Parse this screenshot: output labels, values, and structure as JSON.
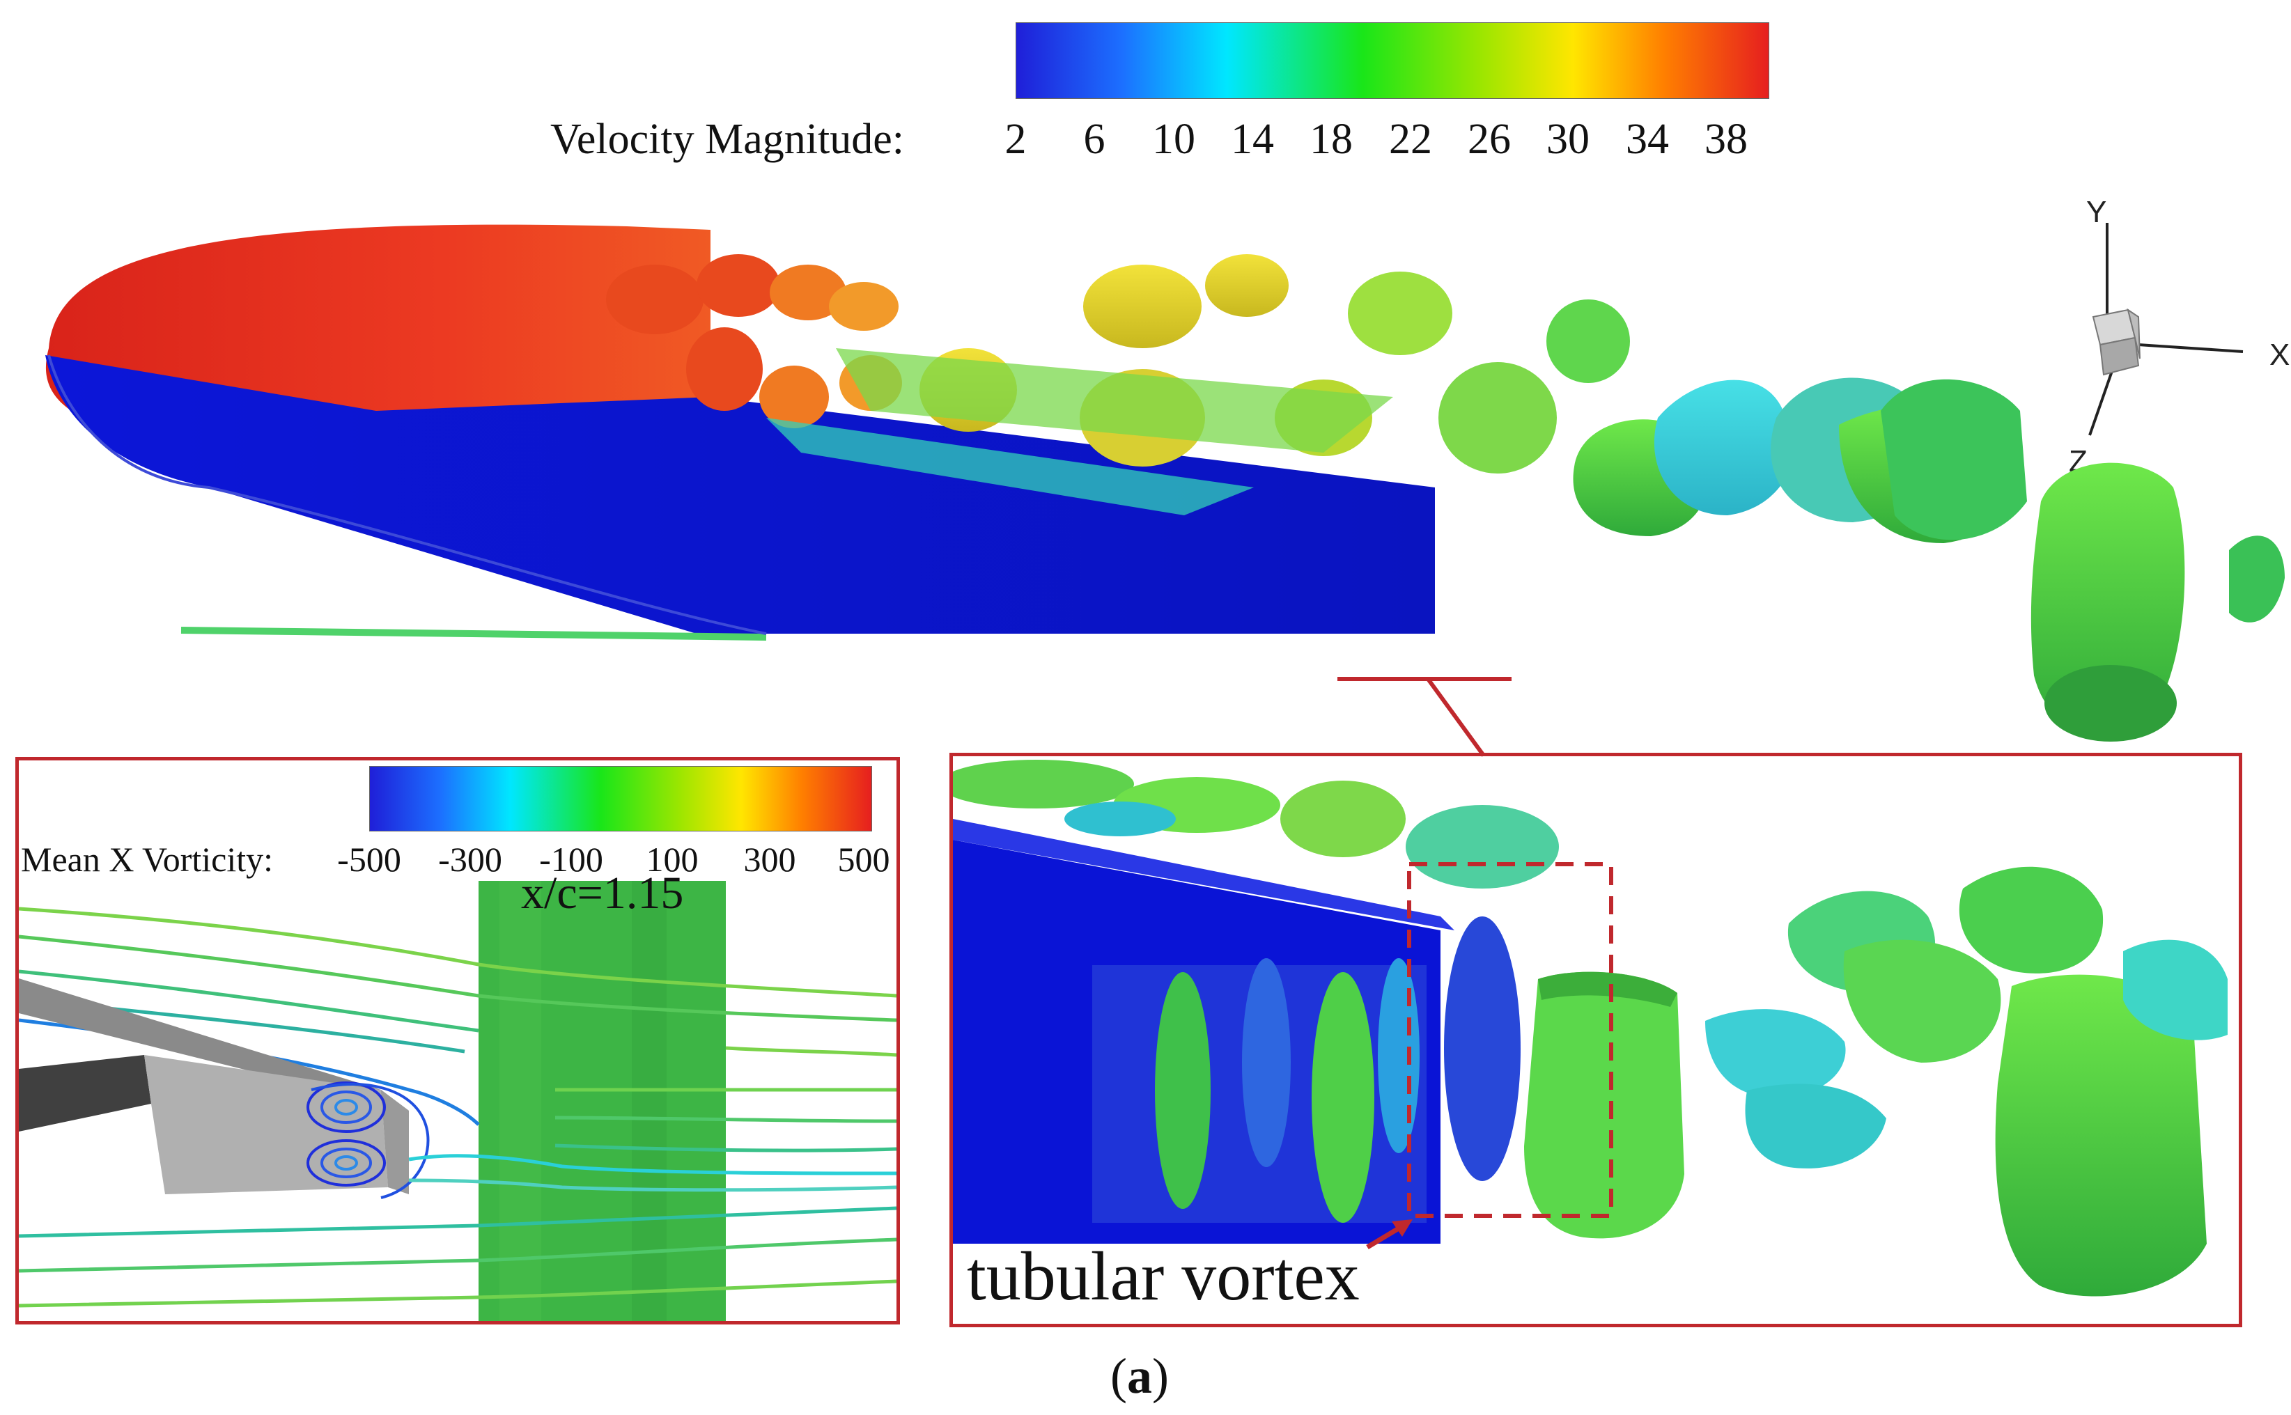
{
  "velocity_colorbar": {
    "label": "Velocity Magnitude:",
    "ticks": [
      "2",
      "6",
      "10",
      "14",
      "18",
      "22",
      "26",
      "30",
      "34",
      "38"
    ],
    "colors": [
      "#1f1fd8",
      "#00e7ff",
      "#19e619",
      "#9ee600",
      "#ffe600",
      "#ff8000",
      "#e61f1f"
    ]
  },
  "vorticity_colorbar": {
    "label": "Mean X Vorticity:",
    "ticks": [
      "-500",
      "-300",
      "-100",
      "100",
      "300",
      "500"
    ],
    "colors": [
      "#1f1fd8",
      "#00e7ff",
      "#19e619",
      "#9ee600",
      "#ffe600",
      "#ff8000",
      "#e61f1f"
    ]
  },
  "axes_triad": {
    "y": "Y",
    "x": "X",
    "z": "Z"
  },
  "left_inset": {
    "station_label": "x/c=1.15"
  },
  "right_inset": {
    "annotation": "tubular vortex"
  },
  "caption": {
    "open": "(",
    "letter": "a",
    "close": ")"
  },
  "colors": {
    "frame": "#c0282d",
    "airfoil_upper": "#e0291f",
    "airfoil_lower": "#0a14d6"
  }
}
